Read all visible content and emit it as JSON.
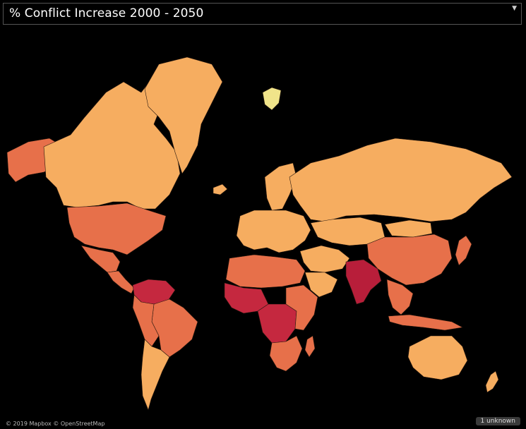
{
  "title": "% Conflict Increase 2000 - 2050",
  "menu_icon": "dropdown-caret-icon",
  "attribution": "© 2019 Mapbox © OpenStreetMap",
  "unknown_badge": "1 unknown",
  "colors": {
    "background": "#000000",
    "low": "#f6ad60",
    "mid": "#e7704a",
    "high": "#c5283f",
    "highest": "#b81e3a",
    "light": "#fbd67a",
    "pale": "#f0e48a"
  },
  "regions": [
    {
      "name": "Alaska & Western Canada",
      "shade": "mid"
    },
    {
      "name": "Canada",
      "shade": "low"
    },
    {
      "name": "Greenland",
      "shade": "low"
    },
    {
      "name": "Svalbard",
      "shade": "pale"
    },
    {
      "name": "United States",
      "shade": "mid"
    },
    {
      "name": "Mexico",
      "shade": "mid"
    },
    {
      "name": "Central America",
      "shade": "mid"
    },
    {
      "name": "Venezuela & Colombia",
      "shade": "high"
    },
    {
      "name": "Brazil",
      "shade": "mid"
    },
    {
      "name": "Andean South America",
      "shade": "mid"
    },
    {
      "name": "Southern Cone",
      "shade": "low"
    },
    {
      "name": "Iceland",
      "shade": "low"
    },
    {
      "name": "Scandinavia",
      "shade": "low"
    },
    {
      "name": "Europe",
      "shade": "low"
    },
    {
      "name": "Russia",
      "shade": "low"
    },
    {
      "name": "Central Asia",
      "shade": "low"
    },
    {
      "name": "China",
      "shade": "mid"
    },
    {
      "name": "Mongolia",
      "shade": "low"
    },
    {
      "name": "North Africa",
      "shade": "mid"
    },
    {
      "name": "West Africa",
      "shade": "high"
    },
    {
      "name": "Central Africa",
      "shade": "high"
    },
    {
      "name": "East Africa",
      "shade": "mid"
    },
    {
      "name": "Southern Africa",
      "shade": "mid"
    },
    {
      "name": "Madagascar",
      "shade": "mid"
    },
    {
      "name": "Middle East",
      "shade": "low"
    },
    {
      "name": "Arabian Peninsula",
      "shade": "low"
    },
    {
      "name": "India",
      "shade": "highest"
    },
    {
      "name": "Southeast Asia",
      "shade": "mid"
    },
    {
      "name": "Indonesia",
      "shade": "mid"
    },
    {
      "name": "Japan",
      "shade": "mid"
    },
    {
      "name": "Australia",
      "shade": "low"
    },
    {
      "name": "New Zealand",
      "shade": "low"
    }
  ]
}
